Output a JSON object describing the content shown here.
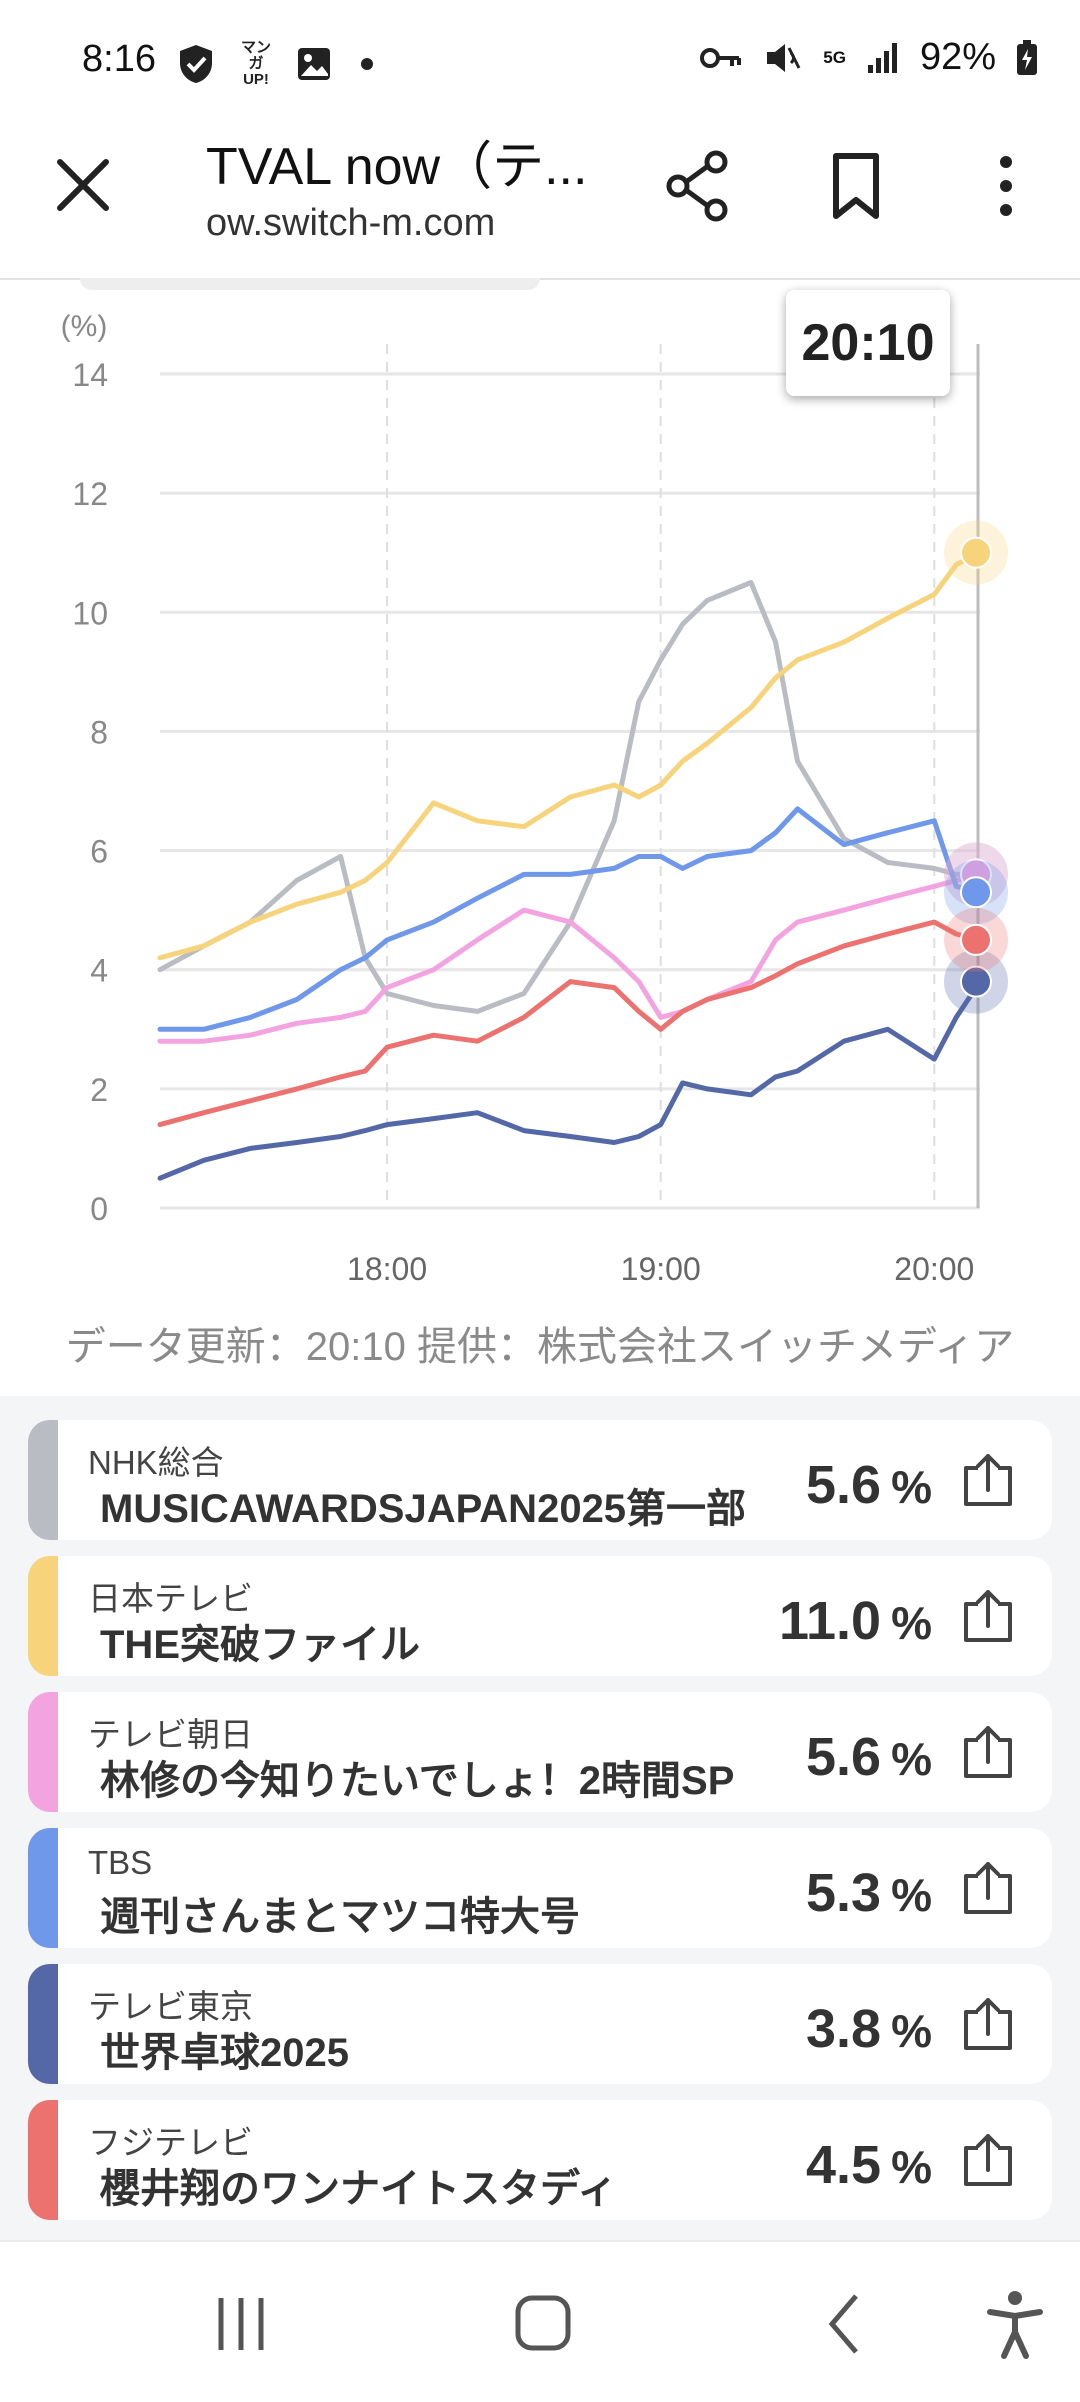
{
  "status_bar": {
    "time": "8:16",
    "battery": "92%",
    "icons": [
      "shield-check-icon",
      "manga-app-icon",
      "gallery-icon",
      "dot-icon",
      "key-icon",
      "mute-icon",
      "5g-icon",
      "signal-icon",
      "battery-icon"
    ],
    "manga_label": "マンガ UP!",
    "network": "5G"
  },
  "browser": {
    "title": "TVAL now（テ...",
    "url": "ow.switch-m.com"
  },
  "chart": {
    "time_tooltip": "20:10",
    "credit": "データ更新：20:10  提供：株式会社スイッチメディア"
  },
  "chart_data": {
    "type": "line",
    "ylabel": "(%)",
    "ylim": [
      0,
      14
    ],
    "yticks": [
      0,
      2,
      4,
      6,
      8,
      10,
      12,
      14
    ],
    "xlim": [
      17.17,
      20.167
    ],
    "xtick_labels": [
      "18:00",
      "19:00",
      "20:00"
    ],
    "xticks": [
      18,
      19,
      20
    ],
    "x": [
      17.17,
      17.33,
      17.5,
      17.67,
      17.83,
      17.92,
      18.0,
      18.17,
      18.33,
      18.5,
      18.67,
      18.83,
      18.92,
      19.0,
      19.08,
      19.17,
      19.33,
      19.42,
      19.5,
      19.67,
      19.83,
      20.0,
      20.08,
      20.167
    ],
    "series": [
      {
        "name": "NHK総合",
        "color": "#b9bcc2",
        "values": [
          4.0,
          4.4,
          4.8,
          5.5,
          5.9,
          4.2,
          3.6,
          3.4,
          3.3,
          3.6,
          4.8,
          6.5,
          8.5,
          9.2,
          9.8,
          10.2,
          10.5,
          9.5,
          7.5,
          6.2,
          5.8,
          5.7,
          5.6,
          5.6
        ]
      },
      {
        "name": "日本テレビ",
        "color": "#f7d47c",
        "values": [
          4.2,
          4.4,
          4.8,
          5.1,
          5.3,
          5.5,
          5.8,
          6.8,
          6.5,
          6.4,
          6.9,
          7.1,
          6.9,
          7.1,
          7.5,
          7.8,
          8.4,
          8.9,
          9.2,
          9.5,
          9.9,
          10.3,
          10.8,
          11.0
        ]
      },
      {
        "name": "テレビ朝日",
        "color": "#f3a4e0",
        "values": [
          2.8,
          2.8,
          2.9,
          3.1,
          3.2,
          3.3,
          3.7,
          4.0,
          4.5,
          5.0,
          4.8,
          4.2,
          3.8,
          3.2,
          3.3,
          3.5,
          3.8,
          4.5,
          4.8,
          5.0,
          5.2,
          5.4,
          5.5,
          5.6
        ]
      },
      {
        "name": "TBS",
        "color": "#6f98ea",
        "values": [
          3.0,
          3.0,
          3.2,
          3.5,
          4.0,
          4.2,
          4.5,
          4.8,
          5.2,
          5.6,
          5.6,
          5.7,
          5.9,
          5.9,
          5.7,
          5.9,
          6.0,
          6.3,
          6.7,
          6.1,
          6.3,
          6.5,
          5.4,
          5.3
        ]
      },
      {
        "name": "テレビ東京",
        "color": "#5468a8",
        "values": [
          0.5,
          0.8,
          1.0,
          1.1,
          1.2,
          1.3,
          1.4,
          1.5,
          1.6,
          1.3,
          1.2,
          1.1,
          1.2,
          1.4,
          2.1,
          2.0,
          1.9,
          2.2,
          2.3,
          2.8,
          3.0,
          2.5,
          3.2,
          3.8
        ]
      },
      {
        "name": "フジテレビ",
        "color": "#ec7270",
        "values": [
          1.4,
          1.6,
          1.8,
          2.0,
          2.2,
          2.3,
          2.7,
          2.9,
          2.8,
          3.2,
          3.8,
          3.7,
          3.3,
          3.0,
          3.3,
          3.5,
          3.7,
          3.9,
          4.1,
          4.4,
          4.6,
          4.8,
          4.6,
          4.5
        ]
      }
    ]
  },
  "channels": [
    {
      "channel": "NHK総合",
      "program": "MUSICAWARDSJAPAN2025第一部",
      "value": "5.6",
      "unit": "%",
      "color": "#b9bcc2"
    },
    {
      "channel": "日本テレビ",
      "program": "THE突破ファイル",
      "value": "11.0",
      "unit": "%",
      "color": "#f7d47c"
    },
    {
      "channel": "テレビ朝日",
      "program": "林修の今知りたいでしょ！2時間SP",
      "value": "5.6",
      "unit": "%",
      "color": "#f3a4e0"
    },
    {
      "channel": "TBS",
      "program": "週刊さんまとマツコ特大号",
      "value": "5.3",
      "unit": "%",
      "color": "#6f98ea"
    },
    {
      "channel": "テレビ東京",
      "program": "世界卓球2025",
      "value": "3.8",
      "unit": "%",
      "color": "#5468a8"
    },
    {
      "channel": "フジテレビ",
      "program": "櫻井翔のワンナイトスタディ",
      "value": "4.5",
      "unit": "%",
      "color": "#ec7270"
    }
  ],
  "nav": {
    "icons": [
      "recent-apps-icon",
      "home-icon",
      "back-icon",
      "accessibility-icon"
    ]
  }
}
